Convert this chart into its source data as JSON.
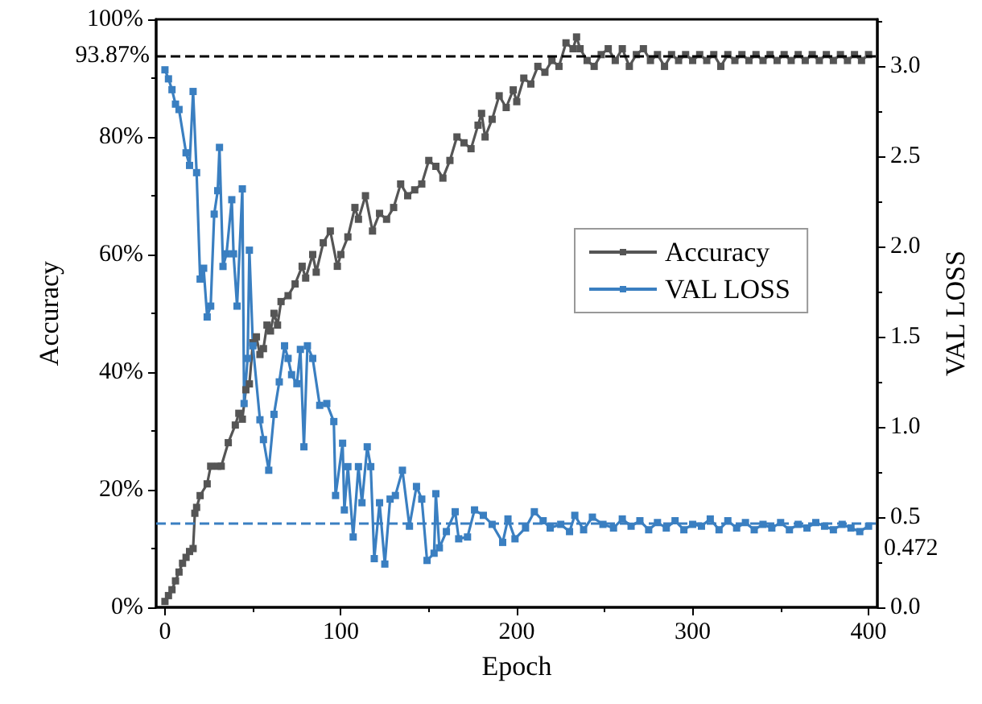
{
  "chart_data": {
    "type": "line",
    "xlabel": "Epoch",
    "ylabel": "Accuracy",
    "y2label": "VAL LOSS",
    "xlim": [
      -5,
      405
    ],
    "xticks": [
      0,
      100,
      200,
      300,
      400
    ],
    "ylim": [
      0,
      100
    ],
    "yticks": [
      {
        "value": 0,
        "label": "0%"
      },
      {
        "value": 20,
        "label": "20%"
      },
      {
        "value": 40,
        "label": "40%"
      },
      {
        "value": 60,
        "label": "60%"
      },
      {
        "value": 80,
        "label": "80%"
      },
      {
        "value": 100,
        "label": "100%"
      }
    ],
    "y2lim": [
      0,
      3.26
    ],
    "y2ticks": [
      {
        "value": 0,
        "label": "0.0"
      },
      {
        "value": 0.5,
        "label": "0.5"
      },
      {
        "value": 1,
        "label": "1.0"
      },
      {
        "value": 1.5,
        "label": "1.5"
      },
      {
        "value": 2,
        "label": "2.0"
      },
      {
        "value": 2.5,
        "label": "2.5"
      },
      {
        "value": 3,
        "label": "3.0"
      }
    ],
    "grid": false,
    "legend": "right",
    "marker": "square",
    "line_style": "solid",
    "ref_lines": [
      {
        "axis": "y",
        "value": 93.87,
        "label": "93.87%",
        "color": "#000000",
        "line_style": "dashed"
      },
      {
        "axis": "y2",
        "value": 0.472,
        "label": "0.472",
        "color": "#3a7fc1",
        "line_style": "dashed"
      }
    ],
    "series": [
      {
        "name": "Accuracy",
        "color": "#555555",
        "x": [
          0,
          2,
          4,
          6,
          8,
          10,
          12,
          14,
          16,
          17,
          18,
          20,
          24,
          26,
          30,
          32,
          36,
          40,
          42,
          44,
          46,
          48,
          50,
          52,
          54,
          56,
          58,
          60,
          62,
          64,
          66,
          70,
          74,
          78,
          80,
          84,
          86,
          90,
          94,
          98,
          100,
          104,
          108,
          110,
          114,
          118,
          122,
          126,
          130,
          134,
          138,
          142,
          146,
          150,
          154,
          158,
          162,
          166,
          170,
          174,
          178,
          180,
          182,
          186,
          190,
          194,
          198,
          200,
          204,
          208,
          212,
          216,
          220,
          224,
          228,
          232,
          234,
          236,
          240,
          244,
          248,
          252,
          256,
          260,
          264,
          268,
          272,
          276,
          280,
          284,
          288,
          292,
          296,
          300,
          304,
          308,
          312,
          316,
          320,
          324,
          328,
          332,
          336,
          340,
          344,
          348,
          352,
          356,
          360,
          364,
          368,
          372,
          376,
          380,
          384,
          388,
          392,
          396,
          400
        ],
        "values": [
          1,
          2,
          3,
          4.5,
          6,
          7.5,
          8.5,
          9.5,
          10,
          16,
          17,
          19,
          21,
          24,
          24,
          24,
          28,
          31,
          33,
          32,
          37,
          38,
          45,
          46,
          43,
          44,
          48,
          47,
          50,
          48,
          52,
          53,
          55,
          58,
          56,
          60,
          57,
          62,
          64,
          58,
          60,
          63,
          68,
          66,
          70,
          64,
          67,
          66,
          68,
          72,
          70,
          71,
          72,
          76,
          75,
          73,
          76,
          80,
          79,
          78,
          82,
          84,
          80,
          83,
          87,
          85,
          88,
          86,
          90,
          89,
          92,
          91,
          93,
          92,
          96,
          95,
          97,
          95,
          93,
          92,
          94,
          95,
          93,
          95,
          92,
          94,
          95,
          93,
          94,
          92,
          94,
          93,
          94,
          93,
          94,
          93,
          94,
          92,
          94,
          93,
          94,
          93,
          94,
          93,
          94,
          93,
          94,
          93,
          94,
          93,
          94,
          93,
          94,
          93,
          94,
          93,
          94,
          93,
          94
        ]
      },
      {
        "name": "VAL LOSS",
        "color": "#3a7fc1",
        "axis": "y2",
        "x": [
          0,
          2,
          4,
          6,
          8,
          12,
          14,
          16,
          18,
          20,
          22,
          24,
          26,
          28,
          30,
          31,
          33,
          35,
          38,
          39,
          41,
          44,
          45,
          47,
          48,
          50,
          54,
          56,
          59,
          62,
          65,
          68,
          70,
          72,
          75,
          77,
          79,
          81,
          84,
          88,
          92,
          96,
          97,
          101,
          102,
          104,
          107,
          110,
          112,
          115,
          117,
          119,
          122,
          125,
          128,
          131,
          135,
          139,
          143,
          146,
          149,
          153,
          154,
          156,
          160,
          165,
          167,
          172,
          176,
          181,
          186,
          192,
          195,
          199,
          205,
          210,
          215,
          219,
          225,
          230,
          233,
          238,
          243,
          249,
          255,
          260,
          265,
          270,
          275,
          280,
          285,
          290,
          295,
          300,
          305,
          310,
          315,
          320,
          325,
          330,
          335,
          340,
          345,
          350,
          355,
          360,
          365,
          370,
          375,
          380,
          385,
          390,
          395,
          400
        ],
        "values": [
          2.98,
          2.93,
          2.87,
          2.79,
          2.76,
          2.52,
          2.45,
          2.86,
          2.41,
          1.82,
          1.88,
          1.61,
          1.67,
          2.18,
          2.31,
          2.55,
          1.89,
          1.96,
          2.26,
          1.96,
          1.67,
          2.32,
          1.13,
          1.38,
          1.98,
          1.45,
          1.04,
          0.93,
          0.76,
          1.07,
          1.25,
          1.45,
          1.38,
          1.29,
          1.24,
          1.43,
          0.89,
          1.45,
          1.38,
          1.12,
          1.13,
          1.03,
          0.62,
          0.91,
          0.54,
          0.78,
          0.39,
          0.78,
          0.58,
          0.89,
          0.78,
          0.27,
          0.58,
          0.24,
          0.6,
          0.62,
          0.76,
          0.45,
          0.67,
          0.6,
          0.26,
          0.3,
          0.63,
          0.33,
          0.42,
          0.53,
          0.38,
          0.39,
          0.54,
          0.51,
          0.46,
          0.36,
          0.49,
          0.38,
          0.44,
          0.53,
          0.48,
          0.44,
          0.46,
          0.42,
          0.51,
          0.43,
          0.5,
          0.46,
          0.44,
          0.49,
          0.45,
          0.48,
          0.43,
          0.47,
          0.44,
          0.48,
          0.43,
          0.46,
          0.45,
          0.49,
          0.43,
          0.48,
          0.44,
          0.47,
          0.43,
          0.46,
          0.44,
          0.47,
          0.43,
          0.46,
          0.44,
          0.47,
          0.45,
          0.43,
          0.46,
          0.44,
          0.42,
          0.45
        ]
      }
    ]
  }
}
